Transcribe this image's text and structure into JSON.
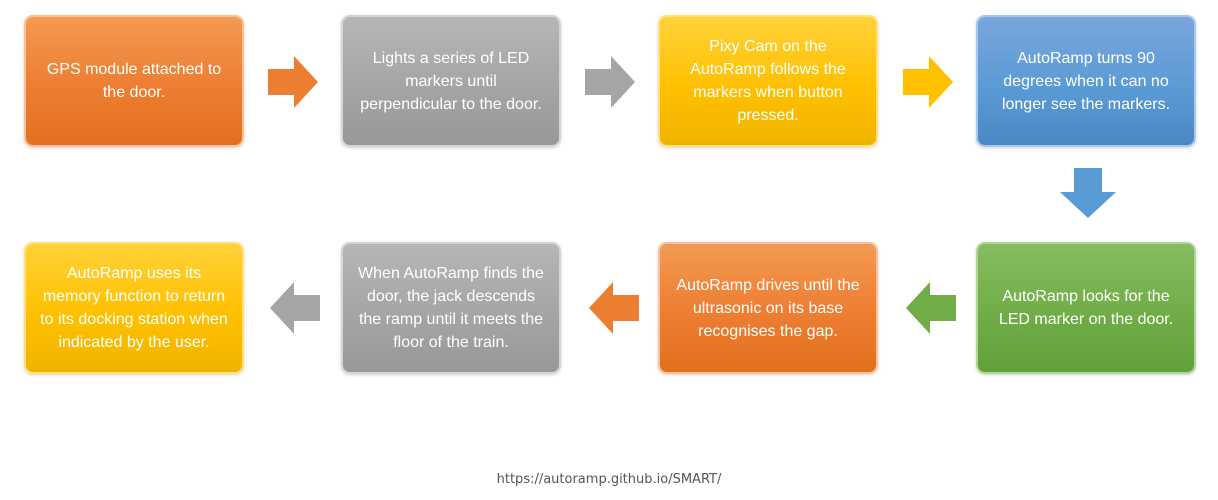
{
  "diagram": {
    "steps": [
      {
        "text": "GPS module attached to the door.",
        "color": "#ED7D31"
      },
      {
        "text": "Lights a series of LED markers until perpendicular to the door.",
        "color": "#A5A5A5"
      },
      {
        "text": "Pixy Cam on the AutoRamp follows the markers when button pressed.",
        "color": "#FFC000"
      },
      {
        "text": "AutoRamp turns 90 degrees when it can no longer see the markers.",
        "color": "#5B9BD5"
      },
      {
        "text": "AutoRamp looks for the LED marker on the door.",
        "color": "#70AD47"
      },
      {
        "text": "AutoRamp drives until the ultrasonic on its base recognises the gap.",
        "color": "#ED7D31"
      },
      {
        "text": "When AutoRamp finds the door, the jack descends the ramp until it meets the floor of the train.",
        "color": "#A5A5A5"
      },
      {
        "text": "AutoRamp uses its memory function to return to its docking station when indicated by the user.",
        "color": "#FFC000"
      }
    ],
    "arrows": [
      {
        "direction": "right",
        "color": "#ED7D31"
      },
      {
        "direction": "right",
        "color": "#A5A5A5"
      },
      {
        "direction": "right",
        "color": "#FFC000"
      },
      {
        "direction": "down",
        "color": "#5B9BD5"
      },
      {
        "direction": "left",
        "color": "#70AD47"
      },
      {
        "direction": "left",
        "color": "#ED7D31"
      },
      {
        "direction": "left",
        "color": "#A5A5A5"
      }
    ]
  },
  "footer": {
    "url": "https://autoramp.github.io/SMART/"
  }
}
